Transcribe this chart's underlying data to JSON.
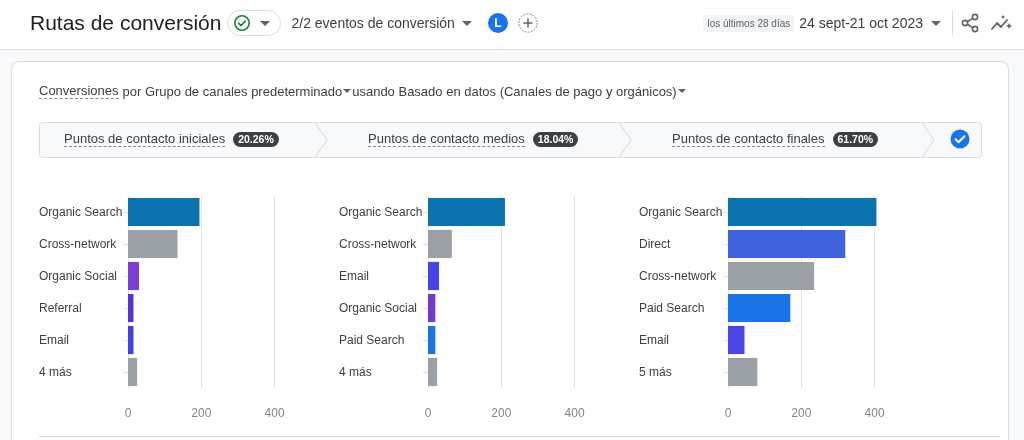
{
  "chart_data": [
    {
      "type": "other",
      "title": "Rutas de conversión",
      "annotations": [
        "2/2 eventos de conversión",
        "L",
        "los últimos 28 días",
        "24 sept-21 oct 2023",
        "Conversiones",
        "por Grupo de canales predeterminado",
        "usando Basado en datos (Canales de pago y orgánicos)"
      ]
    },
    {
      "type": "bar",
      "orientation": "horizontal",
      "title": "Puntos de contacto iniciales",
      "subtitle": "20.26%",
      "categories": [
        "Organic Search",
        "Cross-network",
        "Organic Social",
        "Referral",
        "Email",
        "4 más"
      ],
      "values": [
        195,
        135,
        30,
        15,
        15,
        25
      ],
      "colors": [
        "#0b72ae",
        "#9aa0a6",
        "#7a3fd4",
        "#5a33cf",
        "#4244e2",
        "#9aa0a6"
      ],
      "xlim": [
        0,
        400
      ],
      "xticks": [
        0,
        200,
        400
      ],
      "grid": "x"
    },
    {
      "type": "bar",
      "orientation": "horizontal",
      "title": "Puntos de contacto medios",
      "subtitle": "18.04%",
      "categories": [
        "Organic Search",
        "Cross-network",
        "Email",
        "Organic Social",
        "Paid Search",
        "4 más"
      ],
      "values": [
        210,
        65,
        30,
        20,
        20,
        25
      ],
      "colors": [
        "#0b72ae",
        "#9aa0a6",
        "#4644e8",
        "#6f3dcc",
        "#1a73e8",
        "#9aa0a6"
      ],
      "xlim": [
        0,
        400
      ],
      "xticks": [
        0,
        200,
        400
      ],
      "grid": "x"
    },
    {
      "type": "bar",
      "orientation": "horizontal",
      "title": "Puntos de contacto finales",
      "subtitle": "61.70%",
      "categories": [
        "Organic Search",
        "Direct",
        "Cross-network",
        "Paid Search",
        "Email",
        "5 más"
      ],
      "values": [
        405,
        320,
        235,
        170,
        45,
        80
      ],
      "colors": [
        "#0b72ae",
        "#3f61dc",
        "#9aa0a6",
        "#1a73e8",
        "#4b45e3",
        "#9aa0a6"
      ],
      "xlim": [
        0,
        410
      ],
      "xticks": [
        0,
        200,
        400
      ],
      "grid": "x"
    }
  ]
}
